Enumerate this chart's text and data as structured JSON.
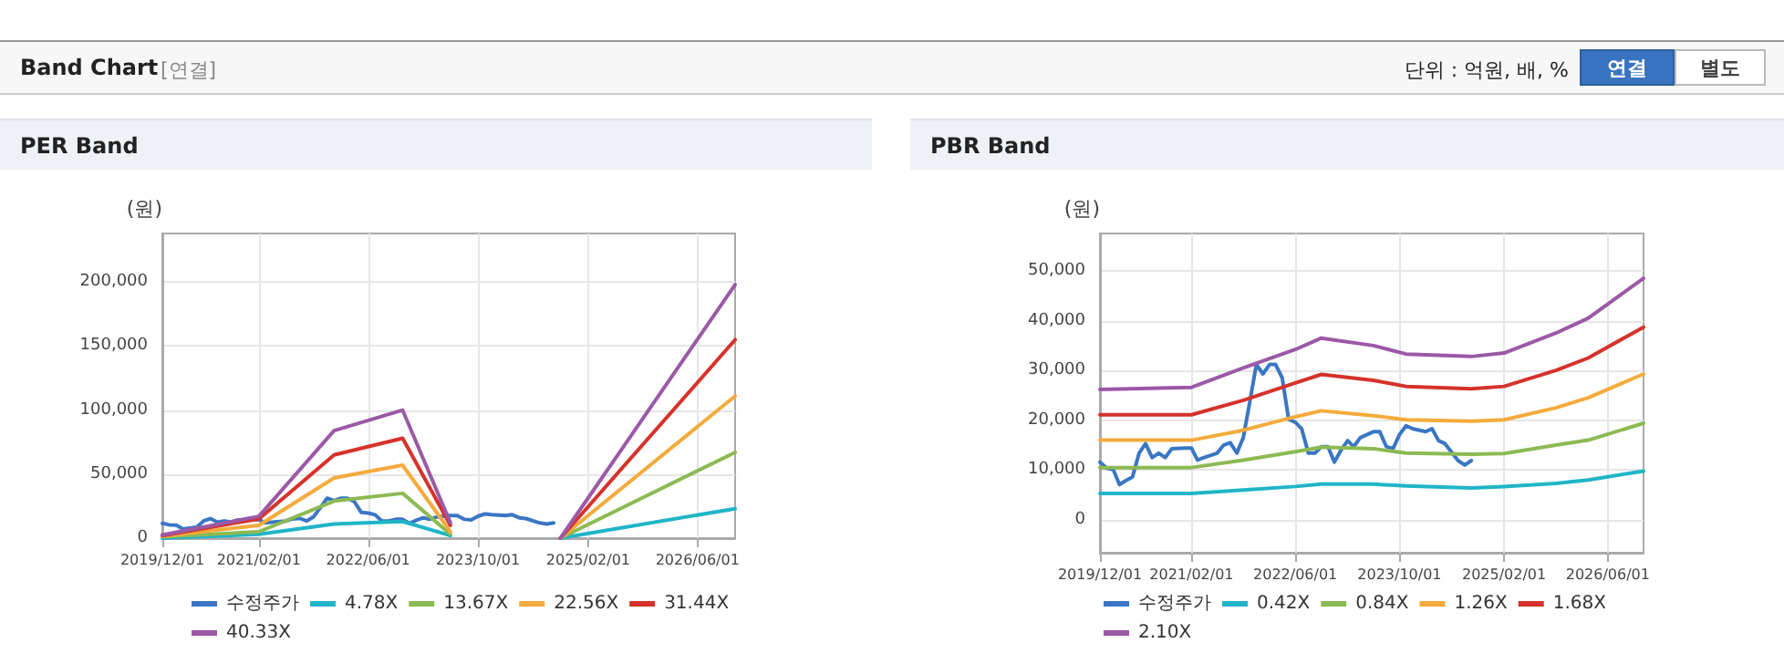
{
  "chart_data": [
    {
      "type": "other",
      "title": "Band Chart",
      "annotations": [
        "[연결]",
        "단위 : 억원, 배, %",
        "연결",
        "별도"
      ]
    },
    {
      "type": "line",
      "title": "PER Band",
      "ylabel": "(원)",
      "grid": true,
      "legend": "bottom",
      "marker": "none",
      "line_style": "solid",
      "xlim": [
        "2019-12-01",
        "2026-11-15"
      ],
      "xticks": [
        {
          "value": "2019-12-01",
          "label": "2019/12/01"
        },
        {
          "value": "2021-02-01",
          "label": "2021/02/01"
        },
        {
          "value": "2022-06-01",
          "label": "2022/06/01"
        },
        {
          "value": "2023-10-01",
          "label": "2023/10/01"
        },
        {
          "value": "2025-02-01",
          "label": "2025/02/01"
        },
        {
          "value": "2026-06-01",
          "label": "2026/06/01"
        }
      ],
      "ylim": [
        0,
        238000
      ],
      "yticks": [
        0,
        {
          "value": 50000,
          "label": "50,000"
        },
        {
          "value": 100000,
          "label": "100,000"
        },
        {
          "value": 150000,
          "label": "150,000"
        },
        {
          "value": 200000,
          "label": "200,000"
        }
      ],
      "series": [
        {
          "name": "수정주가",
          "color": "#3a76c4",
          "x": [
            "2019-12-01",
            "2020-01-01",
            "2020-02-01",
            "2020-03-01",
            "2020-04-01",
            "2020-05-01",
            "2020-06-01",
            "2020-07-01",
            "2020-08-01",
            "2020-09-01",
            "2020-10-01",
            "2020-11-01",
            "2021-01-01",
            "2021-02-01",
            "2021-03-01",
            "2021-04-01",
            "2021-06-01",
            "2021-07-01",
            "2021-08-01",
            "2021-09-01",
            "2021-10-01",
            "2021-11-01",
            "2021-12-01",
            "2022-01-01",
            "2022-02-01",
            "2022-03-01",
            "2022-04-01",
            "2022-05-01",
            "2022-06-01",
            "2022-07-01",
            "2022-08-01",
            "2022-09-01",
            "2022-10-01",
            "2022-11-01",
            "2022-12-01",
            "2023-01-01",
            "2023-02-01",
            "2023-03-01",
            "2023-04-01",
            "2023-06-01",
            "2023-07-01",
            "2023-08-01",
            "2023-09-01",
            "2023-10-01",
            "2023-11-01",
            "2023-12-01",
            "2024-02-01",
            "2024-03-01",
            "2024-04-01",
            "2024-05-01",
            "2024-07-01",
            "2024-08-01",
            "2024-09-01"
          ],
          "values": [
            11600,
            10400,
            10100,
            7100,
            7900,
            8600,
            13400,
            15300,
            12500,
            13400,
            12500,
            14300,
            14400,
            14400,
            12000,
            12500,
            13400,
            15000,
            15500,
            13400,
            16500,
            23800,
            31200,
            29300,
            31200,
            31200,
            28500,
            20200,
            19600,
            18300,
            13400,
            13400,
            14700,
            14700,
            11600,
            14000,
            15900,
            14700,
            16500,
            17700,
            17700,
            14700,
            14300,
            17100,
            18900,
            18300,
            17700,
            18300,
            15900,
            15300,
            11900,
            11000,
            11900
          ]
        },
        {
          "name": "4.78X",
          "color": "#1fb5c7",
          "x": [
            "2019-12-01",
            "2021-02-01",
            "2022-01-01",
            "2022-11-01",
            "2023-06-01",
            "2024-01-01",
            "2024-10-01",
            "2026-11-15"
          ],
          "values": [
            0,
            3000,
            11000,
            13000,
            2000,
            null,
            0,
            23000
          ]
        },
        {
          "name": "13.67X",
          "color": "#8cba53",
          "x": [
            "2019-12-01",
            "2021-02-01",
            "2022-01-01",
            "2022-11-01",
            "2023-06-01",
            "2024-01-01",
            "2024-10-01",
            "2026-11-15"
          ],
          "values": [
            1000,
            5000,
            29000,
            35000,
            3000,
            null,
            0,
            67000
          ]
        },
        {
          "name": "22.56X",
          "color": "#f4ab3c",
          "x": [
            "2019-12-01",
            "2021-02-01",
            "2022-01-01",
            "2022-11-01",
            "2023-06-01",
            "2024-01-01",
            "2024-10-01",
            "2026-11-15"
          ],
          "values": [
            1500,
            10000,
            47000,
            57000,
            5000,
            null,
            0,
            111000
          ]
        },
        {
          "name": "31.44X",
          "color": "#d6322b",
          "x": [
            "2019-12-01",
            "2021-02-01",
            "2022-01-01",
            "2022-11-01",
            "2023-06-01",
            "2024-01-01",
            "2024-10-01",
            "2026-11-15"
          ],
          "values": [
            2000,
            15000,
            65000,
            78000,
            10000,
            null,
            0,
            155000
          ]
        },
        {
          "name": "40.33X",
          "color": "#9b59a6",
          "x": [
            "2019-12-01",
            "2021-02-01",
            "2022-01-01",
            "2022-11-01",
            "2023-06-01",
            "2024-01-01",
            "2024-10-01",
            "2026-11-15"
          ],
          "values": [
            2500,
            17000,
            84000,
            100000,
            12000,
            null,
            0,
            198000
          ]
        }
      ]
    },
    {
      "type": "line",
      "title": "PBR Band",
      "ylabel": "(원)",
      "grid": true,
      "legend": "bottom",
      "marker": "none",
      "line_style": "solid",
      "xlim": [
        "2019-12-01",
        "2026-11-15"
      ],
      "xticks": [
        {
          "value": "2019-12-01",
          "label": "2019/12/01"
        },
        {
          "value": "2021-02-01",
          "label": "2021/02/01"
        },
        {
          "value": "2022-06-01",
          "label": "2022/06/01"
        },
        {
          "value": "2023-10-01",
          "label": "2023/10/01"
        },
        {
          "value": "2025-02-01",
          "label": "2025/02/01"
        },
        {
          "value": "2026-06-01",
          "label": "2026/06/01"
        }
      ],
      "ylim": [
        -6600,
        57500
      ],
      "yticks": [
        0,
        {
          "value": 10000,
          "label": "10,000"
        },
        {
          "value": 20000,
          "label": "20,000"
        },
        {
          "value": 30000,
          "label": "30,000"
        },
        {
          "value": 40000,
          "label": "40,000"
        },
        {
          "value": 50000,
          "label": "50,000"
        }
      ],
      "series": [
        {
          "name": "수정주가",
          "color": "#3a76c4",
          "x": [
            "2019-12-01",
            "2020-01-01",
            "2020-02-01",
            "2020-03-01",
            "2020-04-01",
            "2020-05-01",
            "2020-06-01",
            "2020-07-01",
            "2020-08-01",
            "2020-09-01",
            "2020-10-01",
            "2020-11-01",
            "2021-01-01",
            "2021-02-01",
            "2021-03-01",
            "2021-04-01",
            "2021-06-01",
            "2021-07-01",
            "2021-08-01",
            "2021-09-01",
            "2021-10-01",
            "2021-11-01",
            "2021-12-01",
            "2022-01-01",
            "2022-02-01",
            "2022-03-01",
            "2022-04-01",
            "2022-05-01",
            "2022-06-01",
            "2022-07-01",
            "2022-08-01",
            "2022-09-01",
            "2022-10-01",
            "2022-11-01",
            "2022-12-01",
            "2023-01-01",
            "2023-02-01",
            "2023-03-01",
            "2023-04-01",
            "2023-06-01",
            "2023-07-01",
            "2023-08-01",
            "2023-09-01",
            "2023-10-01",
            "2023-11-01",
            "2023-12-01",
            "2024-02-01",
            "2024-03-01",
            "2024-04-01",
            "2024-05-01",
            "2024-07-01",
            "2024-08-01",
            "2024-09-01"
          ],
          "values": [
            11600,
            10400,
            10100,
            7100,
            7900,
            8600,
            13400,
            15300,
            12500,
            13400,
            12500,
            14300,
            14400,
            14400,
            12000,
            12500,
            13400,
            15000,
            15500,
            13400,
            16500,
            23800,
            31200,
            29300,
            31200,
            31200,
            28500,
            20200,
            19600,
            18300,
            13400,
            13400,
            14700,
            14700,
            11600,
            14000,
            15900,
            14700,
            16500,
            17700,
            17700,
            14700,
            14300,
            17100,
            18900,
            18300,
            17700,
            18300,
            15900,
            15300,
            11900,
            11000,
            11900
          ]
        },
        {
          "name": "0.42X",
          "color": "#1fb5c7",
          "x": [
            "2019-12-01",
            "2021-02-01",
            "2021-10-01",
            "2022-06-01",
            "2022-10-01",
            "2023-06-01",
            "2023-11-01",
            "2024-09-01",
            "2025-02-01",
            "2025-10-01",
            "2026-03-01",
            "2026-11-15"
          ],
          "values": [
            5300,
            5300,
            6000,
            6700,
            7200,
            7200,
            6800,
            6400,
            6700,
            7300,
            8000,
            9800
          ]
        },
        {
          "name": "0.84X",
          "color": "#8cba53",
          "x": [
            "2019-12-01",
            "2021-02-01",
            "2021-10-01",
            "2022-06-01",
            "2022-10-01",
            "2023-06-01",
            "2023-11-01",
            "2024-09-01",
            "2025-02-01",
            "2025-10-01",
            "2026-03-01",
            "2026-11-15"
          ],
          "values": [
            10500,
            10500,
            12000,
            13700,
            14600,
            14300,
            13400,
            13200,
            13300,
            15000,
            16000,
            19400
          ]
        },
        {
          "name": "1.26X",
          "color": "#f4ab3c",
          "x": [
            "2019-12-01",
            "2021-02-01",
            "2021-10-01",
            "2022-06-01",
            "2022-10-01",
            "2023-06-01",
            "2023-11-01",
            "2024-09-01",
            "2025-02-01",
            "2025-10-01",
            "2026-03-01",
            "2026-11-15"
          ],
          "values": [
            16000,
            16000,
            18000,
            20700,
            21900,
            20900,
            20100,
            19800,
            20100,
            22500,
            24500,
            29300
          ]
        },
        {
          "name": "1.68X",
          "color": "#d6322b",
          "x": [
            "2019-12-01",
            "2021-02-01",
            "2021-10-01",
            "2022-06-01",
            "2022-10-01",
            "2023-06-01",
            "2023-11-01",
            "2024-09-01",
            "2025-02-01",
            "2025-10-01",
            "2026-03-01",
            "2026-11-15"
          ],
          "values": [
            21100,
            21100,
            24000,
            27500,
            29200,
            28000,
            26800,
            26300,
            26800,
            30000,
            32500,
            38700
          ]
        },
        {
          "name": "2.10X",
          "color": "#9b59a6",
          "x": [
            "2019-12-01",
            "2021-02-01",
            "2021-10-01",
            "2022-06-01",
            "2022-10-01",
            "2023-06-01",
            "2023-11-01",
            "2024-09-01",
            "2025-02-01",
            "2025-10-01",
            "2026-03-01",
            "2026-11-15"
          ],
          "values": [
            26200,
            26600,
            30500,
            34200,
            36500,
            35000,
            33300,
            32800,
            33500,
            37500,
            40500,
            48500
          ]
        }
      ]
    }
  ]
}
